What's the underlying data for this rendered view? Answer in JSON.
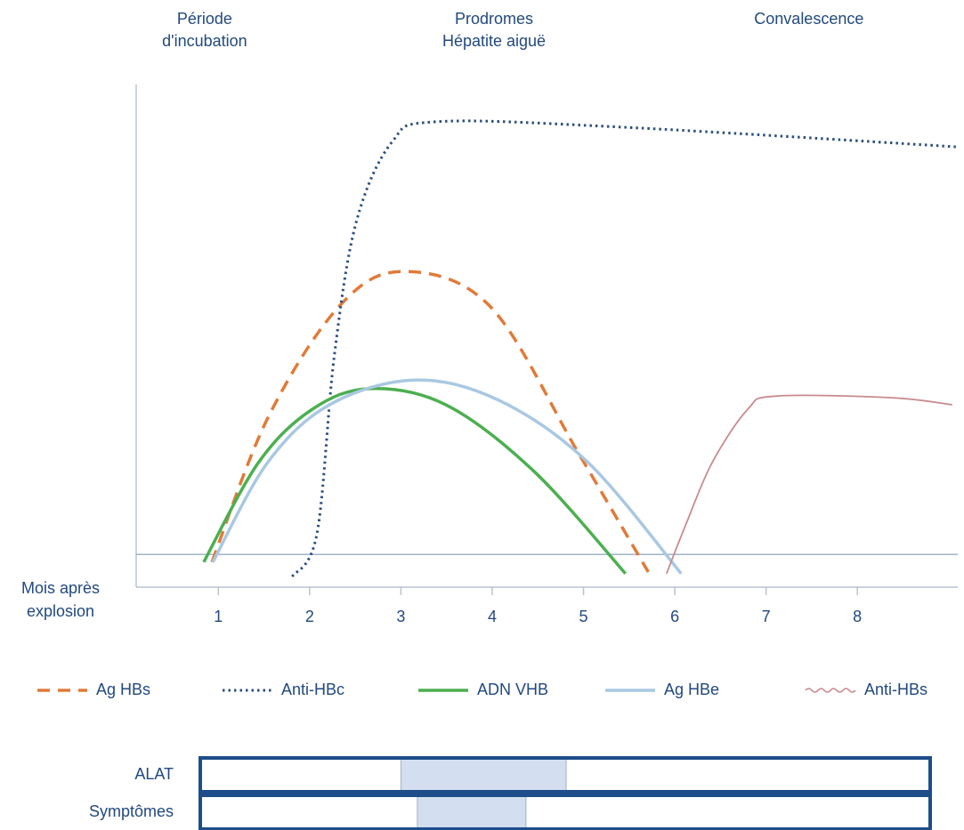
{
  "chart_data": {
    "type": "line",
    "phases": [
      {
        "lines": [
          "Période",
          "d'incubation"
        ],
        "x": 0.85
      },
      {
        "lines": [
          "Prodromes",
          "Hépatite aiguë"
        ],
        "x": 4.02
      },
      {
        "lines": [
          "Convalescence"
        ],
        "x": 7.47
      }
    ],
    "xlabel": [
      "Mois après",
      "explosion"
    ],
    "xlim": [
      0.1,
      9.1
    ],
    "xticks": [
      1,
      2,
      3,
      4,
      5,
      6,
      7,
      8
    ],
    "ylim": [
      0,
      100
    ],
    "reference_line": 6.5,
    "series": [
      {
        "name": "Ag HBs",
        "color": "#e07b39",
        "style": "dashed",
        "x": [
          0.93,
          1.54,
          2.32,
          3.02,
          3.98,
          4.95,
          5.71
        ],
        "values": [
          5,
          33.6,
          55.8,
          62.8,
          55.8,
          26.5,
          3
        ]
      },
      {
        "name": "Anti-HBc",
        "color": "#2c4f7c",
        "style": "dotted",
        "x": [
          1.81,
          2.08,
          2.27,
          2.51,
          2.9,
          3.39,
          5.44,
          9.09
        ],
        "values": [
          2.1,
          10.6,
          46,
          72.6,
          88.5,
          92.6,
          91.5,
          87.6
        ]
      },
      {
        "name": "ADN VHB",
        "color": "#4caf50",
        "style": "solid",
        "x": [
          0.84,
          1.44,
          2.03,
          2.66,
          3.49,
          4.46,
          5.46
        ],
        "values": [
          5,
          24.8,
          35.4,
          39.5,
          36.3,
          23,
          2.7
        ]
      },
      {
        "name": "Ag HBe",
        "color": "#a9c8e2",
        "style": "solid",
        "x": [
          0.94,
          1.54,
          2.22,
          3.15,
          4.07,
          5.05,
          6.07
        ],
        "values": [
          5,
          24.8,
          36.3,
          41.2,
          37.2,
          24.8,
          2.7
        ]
      },
      {
        "name": "Anti-HBs",
        "color": "#c98a8f",
        "style": "wavy",
        "x": [
          5.91,
          6.12,
          6.41,
          6.8,
          7.1,
          8.36,
          9.04
        ],
        "values": [
          2.7,
          12.4,
          24.8,
          35.4,
          38,
          37.7,
          36.3
        ]
      }
    ],
    "periods": [
      {
        "label": "ALAT",
        "start": 3.0,
        "end": 4.81
      },
      {
        "label": "Symptômes",
        "start": 3.18,
        "end": 4.37
      }
    ]
  }
}
